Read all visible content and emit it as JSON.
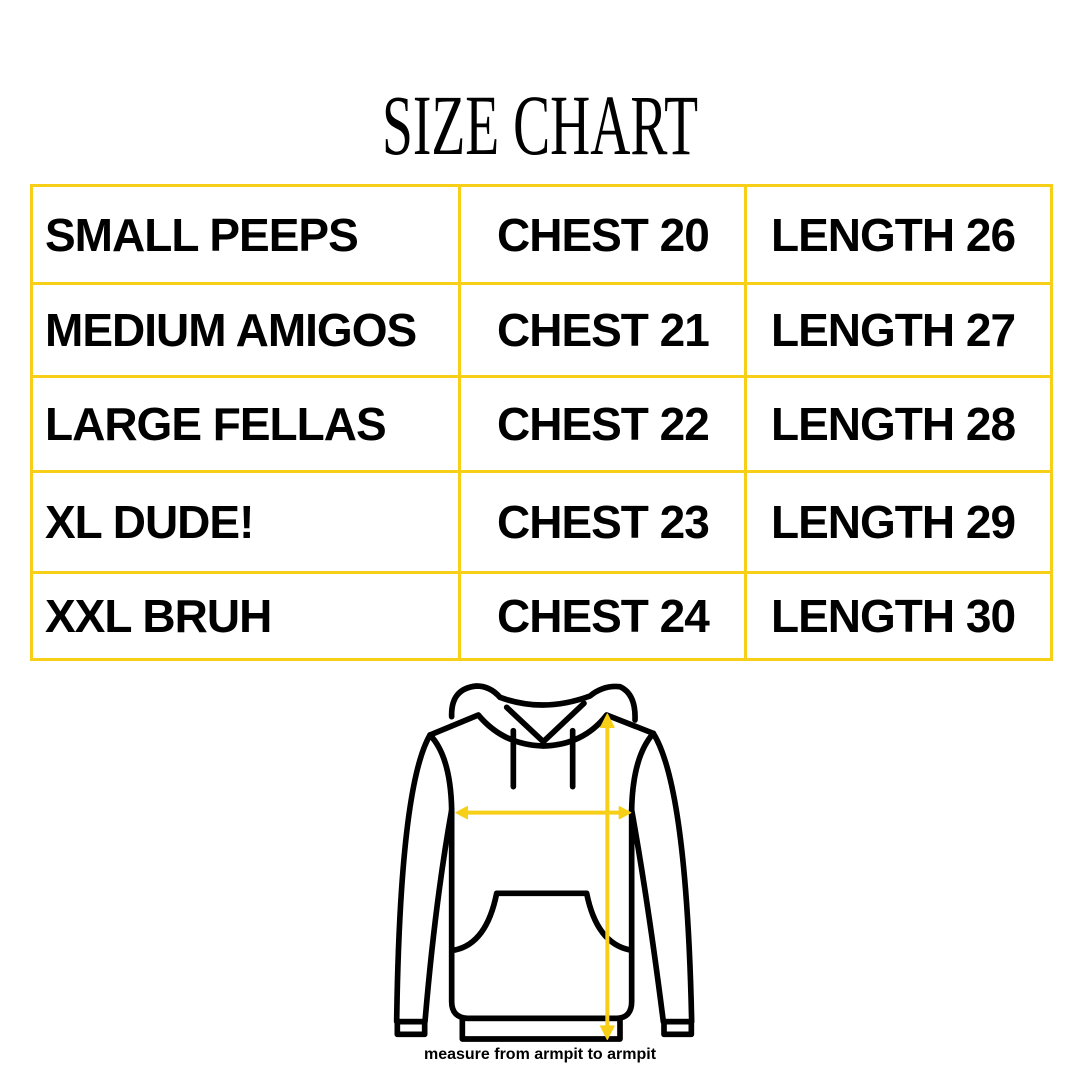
{
  "title": "SIZE CHART",
  "colors": {
    "accent": "#F7CF17",
    "text": "#000000"
  },
  "rows": [
    {
      "size": "SMALL PEEPS",
      "chest": "CHEST 20",
      "length": "LENGTH 26"
    },
    {
      "size": "MEDIUM AMIGOS",
      "chest": "CHEST 21",
      "length": "LENGTH 27"
    },
    {
      "size": "LARGE FELLAS",
      "chest": "CHEST 22",
      "length": "LENGTH 28"
    },
    {
      "size": "XL DUDE!",
      "chest": "CHEST 23",
      "length": "LENGTH 29"
    },
    {
      "size": "XXL BRUH",
      "chest": "CHEST 24",
      "length": "LENGTH 30"
    }
  ],
  "diagram": {
    "icon": "hoodie-measurement-icon",
    "caption": "measure from armpit to armpit"
  }
}
